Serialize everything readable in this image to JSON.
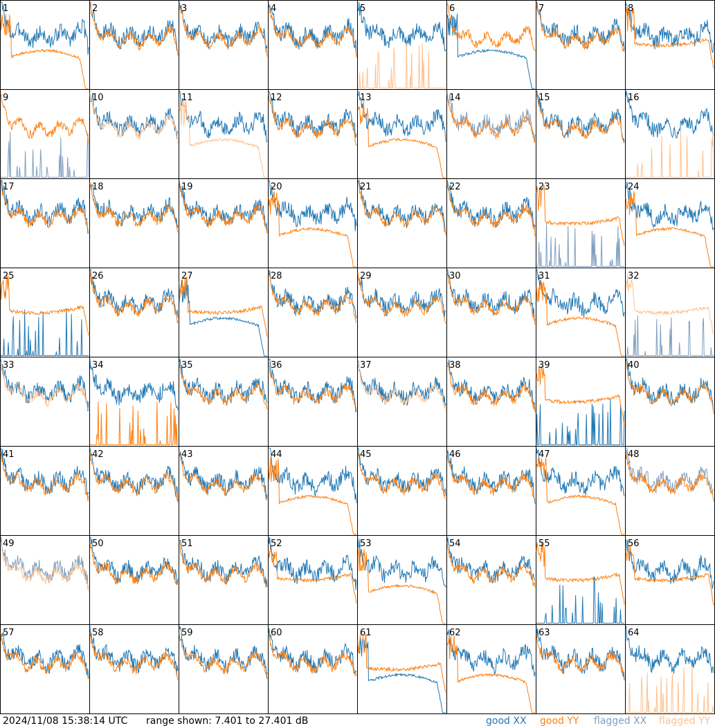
{
  "footer": {
    "timestamp": "2024/11/08 15:38:14 UTC",
    "range_text": "range shown: 7.401 to 27.401 dB"
  },
  "legend": [
    {
      "label": "good XX",
      "color": "#1f77b4"
    },
    {
      "label": "good YY",
      "color": "#ff7f0e"
    },
    {
      "label": "flagged XX",
      "color": "#7f9fbf"
    },
    {
      "label": "flagged YY",
      "color": "#ffc08c"
    }
  ],
  "chart_data": {
    "type": "line",
    "layout": "small-multiples 8x8",
    "ylim": [
      7.401,
      27.401
    ],
    "yunit": "dB",
    "colors": {
      "good_xx": "#1f77b4",
      "good_yy": "#ff7f0e",
      "flagged_xx": "#7f9fbf",
      "flagged_yy": "#ffc08c"
    },
    "tiles": [
      {
        "label": "1",
        "xx": "good",
        "yy": "good",
        "xx_shape": "normal",
        "yy_shape": "low"
      },
      {
        "label": "2",
        "xx": "good",
        "yy": "good",
        "xx_shape": "normal",
        "yy_shape": "normal"
      },
      {
        "label": "3",
        "xx": "good",
        "yy": "good",
        "xx_shape": "normal",
        "yy_shape": "normal"
      },
      {
        "label": "4",
        "xx": "good",
        "yy": "good",
        "xx_shape": "normal",
        "yy_shape": "normal"
      },
      {
        "label": "5",
        "xx": "good",
        "yy": "flagged",
        "xx_shape": "normal",
        "yy_shape": "spikes"
      },
      {
        "label": "6",
        "xx": "good",
        "yy": "good",
        "xx_shape": "low",
        "yy_shape": "normal"
      },
      {
        "label": "7",
        "xx": "good",
        "yy": "good",
        "xx_shape": "normal",
        "yy_shape": "normal"
      },
      {
        "label": "8",
        "xx": "good",
        "yy": "good",
        "xx_shape": "normal",
        "yy_shape": "flat"
      },
      {
        "label": "9",
        "xx": "flagged",
        "yy": "good",
        "xx_shape": "spikes",
        "yy_shape": "normal"
      },
      {
        "label": "10",
        "xx": "good",
        "yy": "flagged",
        "xx_shape": "normal",
        "yy_shape": "normal"
      },
      {
        "label": "11",
        "xx": "good",
        "yy": "flagged",
        "xx_shape": "normal",
        "yy_shape": "low"
      },
      {
        "label": "12",
        "xx": "good",
        "yy": "good",
        "xx_shape": "normal",
        "yy_shape": "normal"
      },
      {
        "label": "13",
        "xx": "good",
        "yy": "good",
        "xx_shape": "normal",
        "yy_shape": "low"
      },
      {
        "label": "14",
        "xx": "flagged",
        "yy": "good",
        "xx_shape": "normal",
        "yy_shape": "normal"
      },
      {
        "label": "15",
        "xx": "good",
        "yy": "good",
        "xx_shape": "normal",
        "yy_shape": "normal"
      },
      {
        "label": "16",
        "xx": "good",
        "yy": "flagged",
        "xx_shape": "normal",
        "yy_shape": "spikes"
      },
      {
        "label": "17",
        "xx": "good",
        "yy": "good",
        "xx_shape": "normal",
        "yy_shape": "normal"
      },
      {
        "label": "18",
        "xx": "good",
        "yy": "good",
        "xx_shape": "normal",
        "yy_shape": "normal"
      },
      {
        "label": "19",
        "xx": "good",
        "yy": "good",
        "xx_shape": "normal",
        "yy_shape": "normal"
      },
      {
        "label": "20",
        "xx": "good",
        "yy": "good",
        "xx_shape": "normal",
        "yy_shape": "low"
      },
      {
        "label": "21",
        "xx": "good",
        "yy": "good",
        "xx_shape": "normal",
        "yy_shape": "normal"
      },
      {
        "label": "22",
        "xx": "good",
        "yy": "good",
        "xx_shape": "normal",
        "yy_shape": "normal"
      },
      {
        "label": "23",
        "xx": "flagged",
        "yy": "good",
        "xx_shape": "spikes",
        "yy_shape": "flat"
      },
      {
        "label": "24",
        "xx": "good",
        "yy": "good",
        "xx_shape": "normal",
        "yy_shape": "low"
      },
      {
        "label": "25",
        "xx": "good",
        "yy": "good",
        "xx_shape": "spikes",
        "yy_shape": "flat"
      },
      {
        "label": "26",
        "xx": "good",
        "yy": "good",
        "xx_shape": "normal",
        "yy_shape": "normal"
      },
      {
        "label": "27",
        "xx": "good",
        "yy": "good",
        "xx_shape": "low",
        "yy_shape": "flat"
      },
      {
        "label": "28",
        "xx": "good",
        "yy": "good",
        "xx_shape": "normal",
        "yy_shape": "normal"
      },
      {
        "label": "29",
        "xx": "good",
        "yy": "good",
        "xx_shape": "normal",
        "yy_shape": "normal"
      },
      {
        "label": "30",
        "xx": "good",
        "yy": "good",
        "xx_shape": "normal",
        "yy_shape": "normal"
      },
      {
        "label": "31",
        "xx": "good",
        "yy": "good",
        "xx_shape": "normal",
        "yy_shape": "low"
      },
      {
        "label": "32",
        "xx": "flagged",
        "yy": "flagged",
        "xx_shape": "spikes",
        "yy_shape": "flat"
      },
      {
        "label": "33",
        "xx": "good",
        "yy": "flagged",
        "xx_shape": "normal",
        "yy_shape": "normal"
      },
      {
        "label": "34",
        "xx": "good",
        "yy": "good",
        "xx_shape": "normal",
        "yy_shape": "spikes"
      },
      {
        "label": "35",
        "xx": "good",
        "yy": "good",
        "xx_shape": "normal",
        "yy_shape": "normal"
      },
      {
        "label": "36",
        "xx": "good",
        "yy": "good",
        "xx_shape": "normal",
        "yy_shape": "normal"
      },
      {
        "label": "37",
        "xx": "good",
        "yy": "flagged",
        "xx_shape": "normal",
        "yy_shape": "normal"
      },
      {
        "label": "38",
        "xx": "good",
        "yy": "good",
        "xx_shape": "normal",
        "yy_shape": "normal"
      },
      {
        "label": "39",
        "xx": "good",
        "yy": "good",
        "xx_shape": "spikes",
        "yy_shape": "flat"
      },
      {
        "label": "40",
        "xx": "good",
        "yy": "good",
        "xx_shape": "normal",
        "yy_shape": "normal"
      },
      {
        "label": "41",
        "xx": "good",
        "yy": "good",
        "xx_shape": "normal",
        "yy_shape": "normal"
      },
      {
        "label": "42",
        "xx": "good",
        "yy": "good",
        "xx_shape": "normal",
        "yy_shape": "normal"
      },
      {
        "label": "43",
        "xx": "good",
        "yy": "good",
        "xx_shape": "normal",
        "yy_shape": "normal"
      },
      {
        "label": "44",
        "xx": "good",
        "yy": "good",
        "xx_shape": "normal",
        "yy_shape": "low"
      },
      {
        "label": "45",
        "xx": "good",
        "yy": "good",
        "xx_shape": "normal",
        "yy_shape": "normal"
      },
      {
        "label": "46",
        "xx": "good",
        "yy": "good",
        "xx_shape": "normal",
        "yy_shape": "normal"
      },
      {
        "label": "47",
        "xx": "good",
        "yy": "good",
        "xx_shape": "normal",
        "yy_shape": "low"
      },
      {
        "label": "48",
        "xx": "flagged",
        "yy": "good",
        "xx_shape": "normal",
        "yy_shape": "normal"
      },
      {
        "label": "49",
        "xx": "flagged",
        "yy": "flagged",
        "xx_shape": "normal",
        "yy_shape": "normal"
      },
      {
        "label": "50",
        "xx": "good",
        "yy": "good",
        "xx_shape": "normal",
        "yy_shape": "normal"
      },
      {
        "label": "51",
        "xx": "good",
        "yy": "good",
        "xx_shape": "normal",
        "yy_shape": "normal"
      },
      {
        "label": "52",
        "xx": "good",
        "yy": "good",
        "xx_shape": "normal",
        "yy_shape": "flat"
      },
      {
        "label": "53",
        "xx": "good",
        "yy": "good",
        "xx_shape": "normal",
        "yy_shape": "low"
      },
      {
        "label": "54",
        "xx": "good",
        "yy": "good",
        "xx_shape": "normal",
        "yy_shape": "normal"
      },
      {
        "label": "55",
        "xx": "good",
        "yy": "good",
        "xx_shape": "spikes",
        "yy_shape": "flat"
      },
      {
        "label": "56",
        "xx": "good",
        "yy": "good",
        "xx_shape": "normal",
        "yy_shape": "flat"
      },
      {
        "label": "57",
        "xx": "good",
        "yy": "good",
        "xx_shape": "normal",
        "yy_shape": "normal"
      },
      {
        "label": "58",
        "xx": "good",
        "yy": "good",
        "xx_shape": "normal",
        "yy_shape": "normal"
      },
      {
        "label": "59",
        "xx": "good",
        "yy": "good",
        "xx_shape": "normal",
        "yy_shape": "normal"
      },
      {
        "label": "60",
        "xx": "good",
        "yy": "good",
        "xx_shape": "normal",
        "yy_shape": "normal"
      },
      {
        "label": "61",
        "xx": "good",
        "yy": "good",
        "xx_shape": "low",
        "yy_shape": "flat"
      },
      {
        "label": "62",
        "xx": "good",
        "yy": "good",
        "xx_shape": "normal",
        "yy_shape": "low"
      },
      {
        "label": "63",
        "xx": "good",
        "yy": "good",
        "xx_shape": "normal",
        "yy_shape": "normal"
      },
      {
        "label": "64",
        "xx": "good",
        "yy": "flagged",
        "xx_shape": "normal",
        "yy_shape": "spikes"
      }
    ]
  }
}
